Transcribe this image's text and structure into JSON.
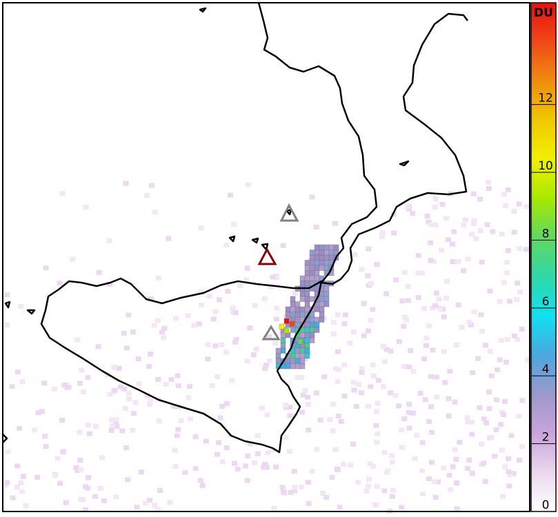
{
  "chart_data": {
    "type": "colorbar",
    "unit_label": "DU",
    "zlim": [
      0,
      15
    ],
    "ticks": [
      0,
      2,
      4,
      6,
      8,
      10,
      12
    ],
    "colors": [
      "#ffffff",
      "#ead8ee",
      "#c9a3db",
      "#9c98cc",
      "#4aa8e0",
      "#10e0f0",
      "#30d8a8",
      "#60d860",
      "#a8e800",
      "#f0f000",
      "#f0c800",
      "#f08c10",
      "#f04818",
      "#e81010"
    ]
  }
}
